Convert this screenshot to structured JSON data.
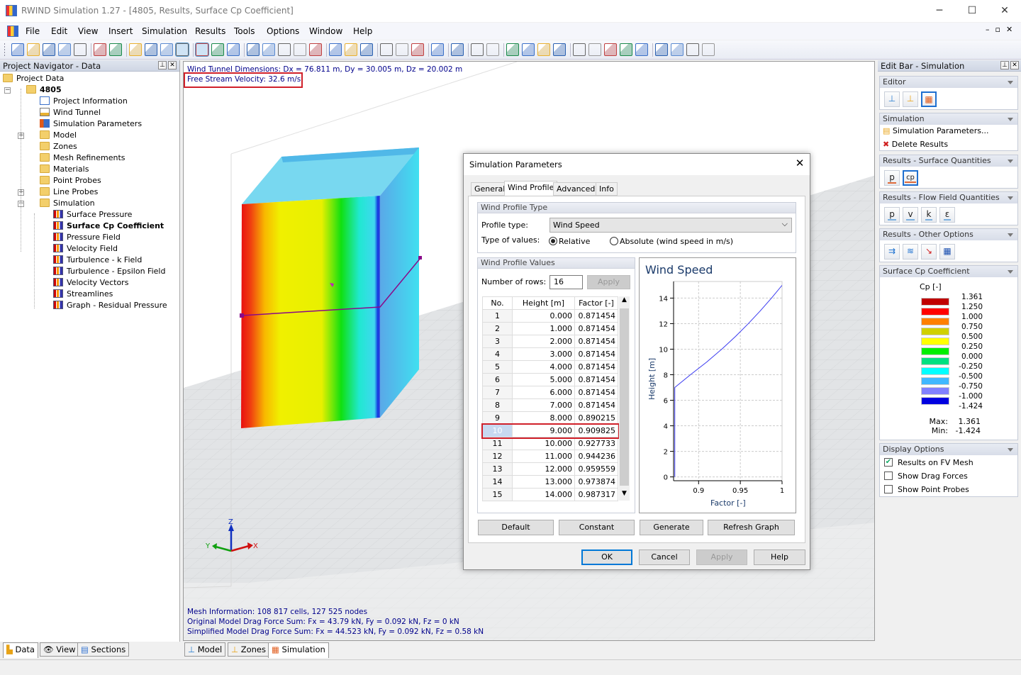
{
  "window": {
    "title": "RWIND Simulation 1.27 - [4805, Results, Surface Cp Coefficient]",
    "minimize": "─",
    "maximize": "☐",
    "close": "✕"
  },
  "menu": [
    "File",
    "Edit",
    "View",
    "Insert",
    "Simulation",
    "Results",
    "Tools",
    "Options",
    "Window",
    "Help"
  ],
  "toolbar_icons": [
    "new-file-icon",
    "open-folder-icon",
    "save-icon",
    "report-icon",
    "print-icon",
    "sep",
    "undo-icon",
    "redo-icon",
    "sep",
    "mesh-display-icon",
    "mesh-eye-icon",
    "grid-snap-icon",
    "select-region-icon",
    "sep",
    "rotate-view-icon",
    "rotate-x-icon",
    "rotate-y-icon",
    "sep",
    "isometric-icon",
    "view-top-icon",
    "view-front-icon",
    "zoom-icon",
    "zoom-all-icon",
    "sep",
    "rotate-select-icon",
    "refresh-icon",
    "regenerate-icon",
    "sep",
    "wireframe-icon",
    "box-icon",
    "axes-arrow-icon",
    "sep",
    "solid-box-icon",
    "sep",
    "color-scale-icon",
    "sep",
    "streamline-icon",
    "layers-icon",
    "sep",
    "probe-icon",
    "probe-plane-icon",
    "probe-box-icon",
    "probe-copy-icon",
    "sep",
    "render-icon",
    "plane-icon",
    "section-icon",
    "square-icon",
    "clip-icon",
    "sep",
    "paint-icon",
    "cut-icon",
    "cut-disabled-icon",
    "overflow-icon"
  ],
  "navigator": {
    "title": "Project Navigator - Data",
    "items": [
      {
        "label": "Project Data",
        "level": 0,
        "icon": "folder-icon"
      },
      {
        "label": "4805",
        "level": 1,
        "icon": "folder-icon",
        "bold": true,
        "expander": "−"
      },
      {
        "label": "Project Information",
        "level": 2,
        "icon": "project-info-icon"
      },
      {
        "label": "Wind Tunnel",
        "level": 2,
        "icon": "wind-tunnel-icon"
      },
      {
        "label": "Simulation Parameters",
        "level": 2,
        "icon": "simulation-parameters-icon"
      },
      {
        "label": "Model",
        "level": 2,
        "icon": "folder-icon",
        "expander": "+"
      },
      {
        "label": "Zones",
        "level": 2,
        "icon": "folder-icon"
      },
      {
        "label": "Mesh Refinements",
        "level": 2,
        "icon": "folder-icon"
      },
      {
        "label": "Materials",
        "level": 2,
        "icon": "folder-icon"
      },
      {
        "label": "Point Probes",
        "level": 2,
        "icon": "folder-icon"
      },
      {
        "label": "Line Probes",
        "level": 2,
        "icon": "folder-icon",
        "expander": "+"
      },
      {
        "label": "Simulation",
        "level": 2,
        "icon": "folder-icon",
        "expander": "−"
      },
      {
        "label": "Surface Pressure",
        "level": 3,
        "icon": "result-icon"
      },
      {
        "label": "Surface Cp Coefficient",
        "level": 3,
        "icon": "result-icon",
        "bold": true
      },
      {
        "label": "Pressure Field",
        "level": 3,
        "icon": "result-icon"
      },
      {
        "label": "Velocity Field",
        "level": 3,
        "icon": "result-icon"
      },
      {
        "label": "Turbulence - k Field",
        "level": 3,
        "icon": "result-icon"
      },
      {
        "label": "Turbulence - Epsilon Field",
        "level": 3,
        "icon": "result-icon"
      },
      {
        "label": "Velocity Vectors",
        "level": 3,
        "icon": "result-icon"
      },
      {
        "label": "Streamlines",
        "level": 3,
        "icon": "result-icon"
      },
      {
        "label": "Graph - Residual Pressure",
        "level": 3,
        "icon": "result-icon"
      }
    ],
    "tabs": [
      "Data",
      "View",
      "Sections"
    ]
  },
  "viewport": {
    "dimensions": "Wind Tunnel Dimensions: Dx = 76.811 m, Dy = 30.005 m, Dz = 20.002 m",
    "velocity": "Free Stream Velocity: 32.6 m/s",
    "mesh_info": "Mesh Information: 108 817 cells, 127 525 nodes",
    "original_drag": "Original Model Drag Force Sum: Fx = 43.79 kN, Fy = 0.092 kN, Fz = 0 kN",
    "simplified_drag": "Simplified Model Drag Force Sum: Fx = 44.523 kN, Fy = 0.092 kN, Fz = 0.58 kN",
    "axes": {
      "x": "X",
      "y": "Y",
      "z": "Z"
    },
    "highlight_color": "#d0202a",
    "tabs": [
      "Model",
      "Zones",
      "Simulation"
    ],
    "active_tab": "Simulation"
  },
  "dialog": {
    "title": "Simulation Parameters",
    "close": "✕",
    "tabs": [
      "General",
      "Wind Profile",
      "Advanced",
      "Info"
    ],
    "active_tab": "Wind Profile",
    "profile_type_group": "Wind Profile Type",
    "profile_type_label": "Profile type:",
    "profile_type_value": "Wind Speed",
    "type_of_values_label": "Type of values:",
    "relative_label": "Relative",
    "absolute_label": "Absolute (wind speed in m/s)",
    "type_of_values_selected": "Relative",
    "values_group": "Wind Profile Values",
    "rows_label": "Number of rows:",
    "rows_value": "16",
    "apply_rows": "Apply",
    "table": {
      "headers": [
        "No.",
        "Height [m]",
        "Factor [-]"
      ],
      "rows": [
        [
          "1",
          "0.000",
          "0.871454"
        ],
        [
          "2",
          "1.000",
          "0.871454"
        ],
        [
          "3",
          "2.000",
          "0.871454"
        ],
        [
          "4",
          "3.000",
          "0.871454"
        ],
        [
          "5",
          "4.000",
          "0.871454"
        ],
        [
          "6",
          "5.000",
          "0.871454"
        ],
        [
          "7",
          "6.000",
          "0.871454"
        ],
        [
          "8",
          "7.000",
          "0.871454"
        ],
        [
          "9",
          "8.000",
          "0.890215"
        ],
        [
          "10",
          "9.000",
          "0.909825"
        ],
        [
          "11",
          "10.000",
          "0.927733"
        ],
        [
          "12",
          "11.000",
          "0.944236"
        ],
        [
          "13",
          "12.000",
          "0.959559"
        ],
        [
          "14",
          "13.000",
          "0.973874"
        ],
        [
          "15",
          "14.000",
          "0.987317"
        ]
      ],
      "selected_row": 10
    },
    "buttons": [
      "Default",
      "Constant",
      "Generate",
      "Refresh Graph"
    ],
    "footer": {
      "ok": "OK",
      "cancel": "Cancel",
      "apply": "Apply",
      "help": "Help"
    }
  },
  "chart_data": {
    "type": "line",
    "title": "Wind Speed",
    "xlabel": "Factor [-]",
    "ylabel": "Height [m]",
    "xlim": [
      0.87,
      1.0
    ],
    "ylim": [
      -0.3,
      15.3
    ],
    "xticks": [
      "0.9",
      "0.95",
      "1"
    ],
    "yticks": [
      "0",
      "2",
      "4",
      "6",
      "8",
      "10",
      "12",
      "14"
    ],
    "grid": true,
    "line_color": "#3a3af0",
    "x": [
      0.871454,
      0.871454,
      0.871454,
      0.871454,
      0.871454,
      0.871454,
      0.871454,
      0.871454,
      0.890215,
      0.909825,
      0.927733,
      0.944236,
      0.959559,
      0.973874,
      0.987317,
      1.0
    ],
    "y": [
      0,
      1,
      2,
      3,
      4,
      5,
      6,
      7,
      8,
      9,
      10,
      11,
      12,
      13,
      14,
      15
    ]
  },
  "editbar": {
    "title": "Edit Bar - Simulation",
    "editor": {
      "title": "Editor",
      "icons": [
        "model-icon",
        "zones-icon",
        "simulation-icon"
      ],
      "active": 2
    },
    "simulation": {
      "title": "Simulation",
      "items": [
        "Simulation Parameters...",
        "Delete Results"
      ]
    },
    "surface": {
      "title": "Results - Surface Quantities",
      "buttons": [
        "p",
        "cp"
      ],
      "active": 1
    },
    "flow": {
      "title": "Results - Flow Field Quantities",
      "buttons": [
        "p",
        "v",
        "k",
        "ε"
      ]
    },
    "other": {
      "title": "Results - Other Options",
      "icons": [
        "vectors-icon",
        "streamlines-icon",
        "graph-icon",
        "grid-icon"
      ]
    },
    "legend": {
      "title": "Surface Cp Coefficient",
      "unit": "Cp [-]",
      "values": [
        "1.361",
        "1.250",
        "1.000",
        "0.750",
        "0.500",
        "0.250",
        "0.000",
        "-0.250",
        "-0.500",
        "-0.750",
        "-1.000",
        "-1.424"
      ],
      "colors": [
        "#c00000",
        "#ff0000",
        "#ff8000",
        "#d0d000",
        "#ffff00",
        "#00ee00",
        "#00e080",
        "#00ffff",
        "#40b8ff",
        "#8080ff",
        "#0000e0"
      ],
      "max_label": "Max:",
      "max": "1.361",
      "min_label": "Min:",
      "min": "-1.424"
    },
    "display": {
      "title": "Display Options",
      "options": [
        {
          "label": "Results on FV Mesh",
          "checked": true
        },
        {
          "label": "Show Drag Forces",
          "checked": false
        },
        {
          "label": "Show Point Probes",
          "checked": false
        }
      ]
    }
  }
}
